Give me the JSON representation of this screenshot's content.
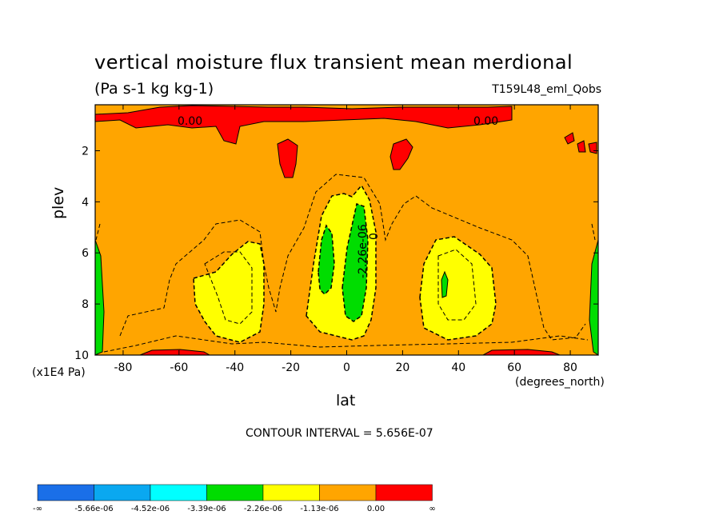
{
  "chart_data": {
    "type": "heatmap",
    "title": "vertical moisture flux transient mean merdional",
    "units_label": "(Pa s-1 kg kg-1)",
    "dataset_label": "T159L48_eml_Qobs",
    "xlabel": "lat",
    "x_units": "(degrees_north)",
    "ylabel": "plev",
    "y_units": "(x1E4 Pa)",
    "xlim": [
      -90,
      90
    ],
    "ylim": [
      10,
      0.2
    ],
    "x_ticks": [
      -80,
      -60,
      -40,
      -20,
      0,
      20,
      40,
      60,
      80
    ],
    "x_tick_labels": [
      "-80",
      "-60",
      "-40",
      "-20",
      "0",
      "20",
      "40",
      "60",
      "80"
    ],
    "y_ticks": [
      2,
      4,
      6,
      8,
      10
    ],
    "y_tick_labels": [
      "2",
      "4",
      "6",
      "8",
      "10"
    ],
    "contour_interval_label": "CONTOUR INTERVAL = 5.656E-07",
    "contour_labels": [
      "0.00",
      "0.00",
      "-2.26e-06",
      "0"
    ],
    "colorbar": {
      "labels": [
        "-∞",
        "-5.66e-06",
        "-4.52e-06",
        "-3.39e-06",
        "-2.26e-06",
        "-1.13e-06",
        "0.00",
        "∞"
      ],
      "colors": [
        "#1a6fe8",
        "#0aa8f0",
        "#00ffff",
        "#00dd00",
        "#ffff00",
        "#ffa500",
        "#ff0000"
      ]
    },
    "regions": [
      {
        "level": "positive (>0)",
        "color": "#ff0000",
        "description": "upper levels near top and surface bands"
      },
      {
        "level": "0 to -1.13e-06",
        "color": "#ffa500",
        "description": "background"
      },
      {
        "level": "-1.13e-06 to -2.26e-06",
        "color": "#ffff00",
        "description": "midlatitude and tropical lobes"
      },
      {
        "level": "-2.26e-06 to -3.39e-06",
        "color": "#00dd00",
        "description": "tropical core near equator and polar edges"
      }
    ]
  }
}
